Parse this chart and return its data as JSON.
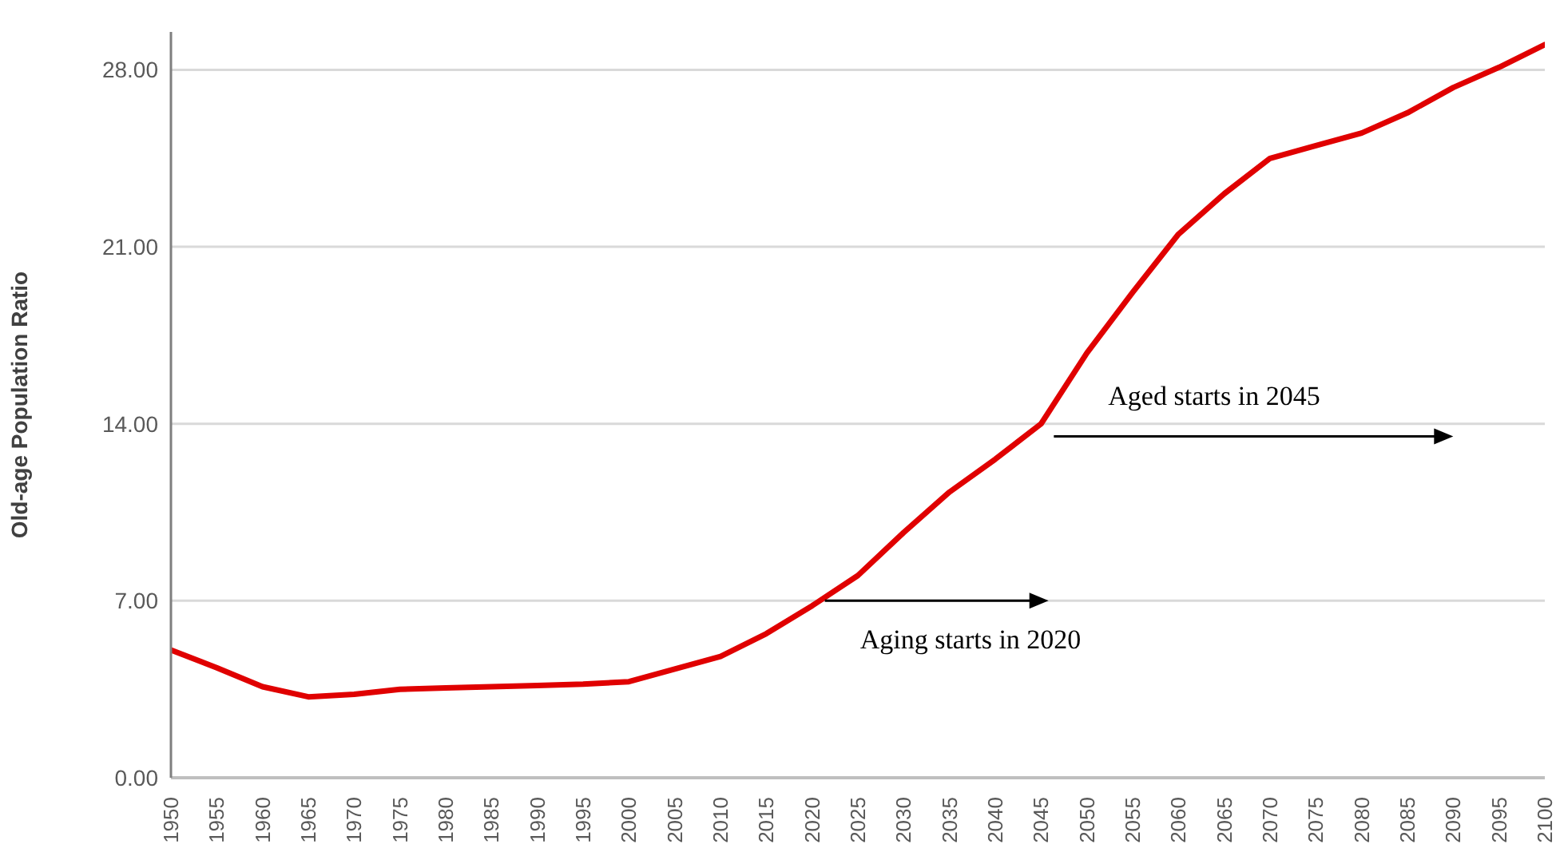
{
  "chart_data": {
    "type": "line",
    "ylabel": "Old-age  Population Ratio",
    "x": [
      1950,
      1955,
      1960,
      1965,
      1970,
      1975,
      1980,
      1985,
      1990,
      1995,
      2000,
      2005,
      2010,
      2015,
      2020,
      2025,
      2030,
      2035,
      2040,
      2045,
      2050,
      2055,
      2060,
      2065,
      2070,
      2075,
      2080,
      2085,
      2090,
      2095,
      2100
    ],
    "series": [
      {
        "color": "#e00000",
        "values": [
          5.05,
          4.35,
          3.6,
          3.2,
          3.3,
          3.5,
          3.55,
          3.6,
          3.65,
          3.7,
          3.8,
          4.3,
          4.8,
          5.7,
          6.8,
          8.0,
          9.7,
          11.3,
          12.6,
          14.0,
          16.8,
          19.2,
          21.5,
          23.1,
          24.5,
          25.0,
          25.5,
          26.3,
          27.3,
          28.1,
          29.0
        ]
      }
    ],
    "xlim": [
      1950,
      2100
    ],
    "xticks": [
      1950,
      1955,
      1960,
      1965,
      1970,
      1975,
      1980,
      1985,
      1990,
      1995,
      2000,
      2005,
      2010,
      2015,
      2020,
      2025,
      2030,
      2035,
      2040,
      2045,
      2050,
      2055,
      2060,
      2065,
      2070,
      2075,
      2080,
      2085,
      2090,
      2095,
      2100
    ],
    "ylim": [
      0,
      29.5
    ],
    "yticks": [
      {
        "value": 0,
        "label": "0.00"
      },
      {
        "value": 7,
        "label": "7.00"
      },
      {
        "value": 14,
        "label": "14.00"
      },
      {
        "value": 21,
        "label": "21.00"
      },
      {
        "value": 28,
        "label": "28.00"
      }
    ],
    "grid": "y",
    "legend": false,
    "marker": "none",
    "line_style": "solid",
    "annotations": [
      {
        "text": "Aging starts in 2020",
        "x": 2020,
        "y": 7
      },
      {
        "text": "Aged starts in 2045",
        "x": 2045,
        "y": 13.5
      }
    ]
  }
}
